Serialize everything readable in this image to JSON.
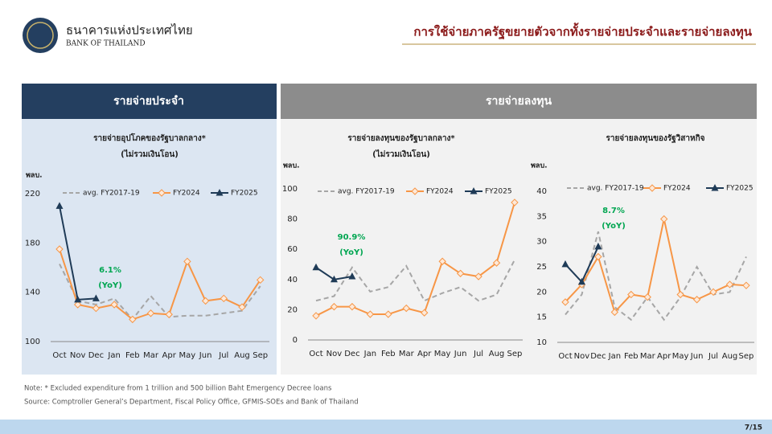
{
  "header": {
    "org_th": "ธนาคารแห่งประเทศไทย",
    "org_en": "BANK OF THAILAND",
    "title": "การใช้จ่ายภาครัฐขยายตัวจากทั้งรายจ่ายประจำและรายจ่ายลงทุน"
  },
  "panels": [
    "รายจ่ายประจำ",
    "รายจ่ายลงทุน"
  ],
  "chart_data": [
    {
      "type": "line",
      "title": "รายจ่ายอุปโภคของรัฐบาลกลาง*",
      "subtitle": "(ไม่รวมเงินโอน)",
      "y_label": "พลบ.",
      "categories": [
        "Oct",
        "Nov",
        "Dec",
        "Jan",
        "Feb",
        "Mar",
        "Apr",
        "May",
        "Jun",
        "Jul",
        "Aug",
        "Sep"
      ],
      "ylim": [
        100,
        220
      ],
      "yticks": [
        100,
        140,
        180,
        220
      ],
      "annotations": [
        "6.1%",
        "(YoY)"
      ],
      "series": [
        {
          "name": "avg. FY2017-19",
          "color": "#a6a6a6",
          "values": [
            163,
            133,
            130,
            135,
            118,
            137,
            120,
            121,
            121,
            123,
            125,
            145
          ]
        },
        {
          "name": "FY2024",
          "color": "#f79646",
          "values": [
            175,
            130,
            127,
            130,
            118,
            123,
            122,
            165,
            133,
            135,
            128,
            150
          ]
        },
        {
          "name": "FY2025",
          "color": "#1f3b57",
          "values": [
            210,
            134,
            135,
            null,
            null,
            null,
            null,
            null,
            null,
            null,
            null,
            null
          ]
        }
      ]
    },
    {
      "type": "line",
      "title": "รายจ่ายลงทุนของรัฐบาลกลาง*",
      "subtitle": "(ไม่รวมเงินโอน)",
      "y_label": "พลบ.",
      "categories": [
        "Oct",
        "Nov",
        "Dec",
        "Jan",
        "Feb",
        "Mar",
        "Apr",
        "May",
        "Jun",
        "Jul",
        "Aug",
        "Sep"
      ],
      "ylim": [
        0,
        100
      ],
      "yticks": [
        0,
        20,
        40,
        60,
        80,
        100
      ],
      "annotations": [
        "90.9%",
        "(YoY)"
      ],
      "series": [
        {
          "name": "avg. FY2017-19",
          "color": "#a6a6a6",
          "values": [
            26,
            29,
            48,
            32,
            35,
            49,
            26,
            31,
            35,
            26,
            30,
            53
          ]
        },
        {
          "name": "FY2024",
          "color": "#f79646",
          "values": [
            16,
            22,
            22,
            17,
            17,
            21,
            18,
            52,
            44,
            42,
            51,
            91
          ]
        },
        {
          "name": "FY2025",
          "color": "#1f3b57",
          "values": [
            48,
            40,
            42,
            null,
            null,
            null,
            null,
            null,
            null,
            null,
            null,
            null
          ]
        }
      ]
    },
    {
      "type": "line",
      "title": "รายจ่ายลงทุนของรัฐวิสาหกิจ",
      "y_label": "พลบ.",
      "categories": [
        "Oct",
        "Nov",
        "Dec",
        "Jan",
        "Feb",
        "Mar",
        "Apr",
        "May",
        "Jun",
        "Jul",
        "Aug",
        "Sep"
      ],
      "ylim": [
        10,
        40
      ],
      "yticks": [
        10,
        15,
        20,
        25,
        30,
        35,
        40
      ],
      "annotations": [
        "8.7%",
        "(YoY)"
      ],
      "series": [
        {
          "name": "avg. FY2017-19",
          "color": "#a6a6a6",
          "values": [
            15.5,
            19.5,
            32,
            17,
            14.5,
            19,
            14.5,
            19,
            25,
            19.5,
            20,
            27
          ]
        },
        {
          "name": "FY2024",
          "color": "#f79646",
          "values": [
            18,
            21.5,
            27,
            16,
            19.5,
            19,
            34.5,
            19.5,
            18.5,
            20,
            21.5,
            21.3
          ]
        },
        {
          "name": "FY2025",
          "color": "#1f3b57",
          "values": [
            25.5,
            22,
            29,
            null,
            null,
            null,
            null,
            null,
            null,
            null,
            null,
            null
          ]
        }
      ]
    }
  ],
  "notes": [
    "Note: * Excluded expenditure from 1 trillion and 500 billion Baht Emergency Decree loans",
    "Source: Comptroller General’s Department, Fiscal Policy Office, GFMIS-SOEs and Bank of Thailand"
  ],
  "page_number": "7/15"
}
